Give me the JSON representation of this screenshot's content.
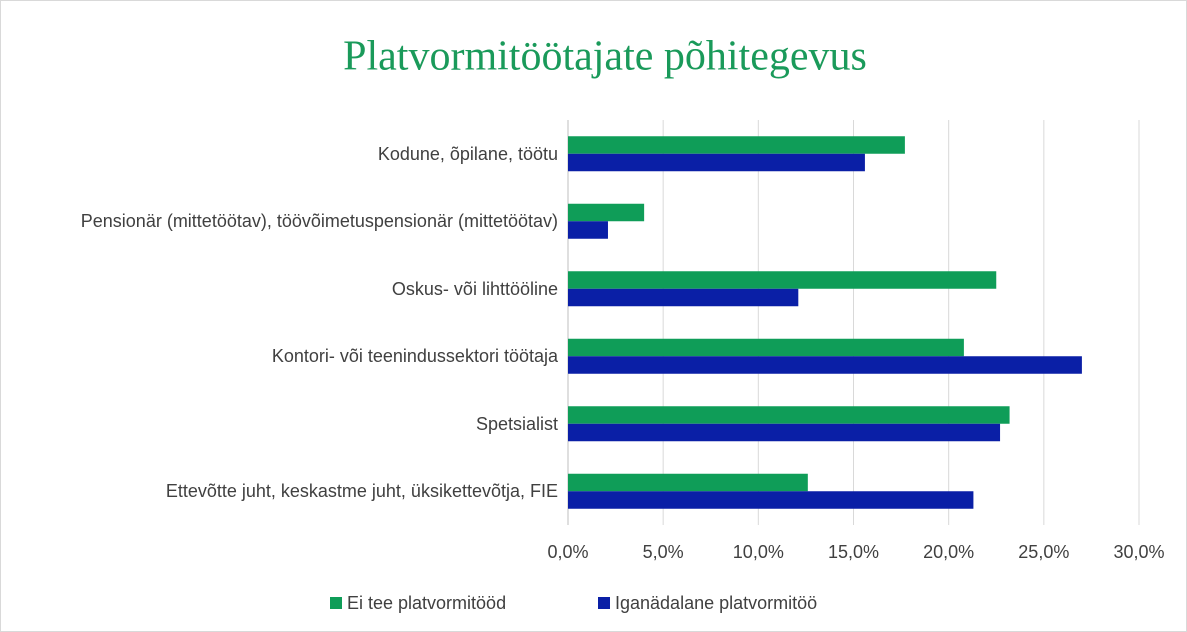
{
  "chart_data": {
    "type": "hbar",
    "title": "Platvormitöötajate põhitegevus",
    "categories": [
      "Kodune, õpilane, töötu",
      "Pensionär (mittetöötav), töövõimetuspensionär (mittetöötav)",
      "Oskus- või lihttööline",
      "Kontori- või teenindussektori töötaja",
      "Spetsialist",
      "Ettevõtte juht, keskastme juht, üksikettevõtja, FIE"
    ],
    "series": [
      {
        "name": "Ei tee platvormitööd",
        "color": "#0f9d58",
        "values": [
          17.7,
          4.0,
          22.5,
          20.8,
          23.2,
          12.6
        ]
      },
      {
        "name": "Iganädalane platvormitöö",
        "color": "#0a1fa6",
        "values": [
          15.6,
          2.1,
          12.1,
          27.0,
          22.7,
          21.3
        ]
      }
    ],
    "xlim": [
      0,
      30
    ],
    "xticks": [
      {
        "value": 0,
        "label": "0,0%"
      },
      {
        "value": 5,
        "label": "5,0%"
      },
      {
        "value": 10,
        "label": "10,0%"
      },
      {
        "value": 15,
        "label": "15,0%"
      },
      {
        "value": 20,
        "label": "20,0%"
      },
      {
        "value": 25,
        "label": "25,0%"
      },
      {
        "value": 30,
        "label": "30,0%"
      }
    ],
    "grid": true,
    "legend": "bottom"
  }
}
